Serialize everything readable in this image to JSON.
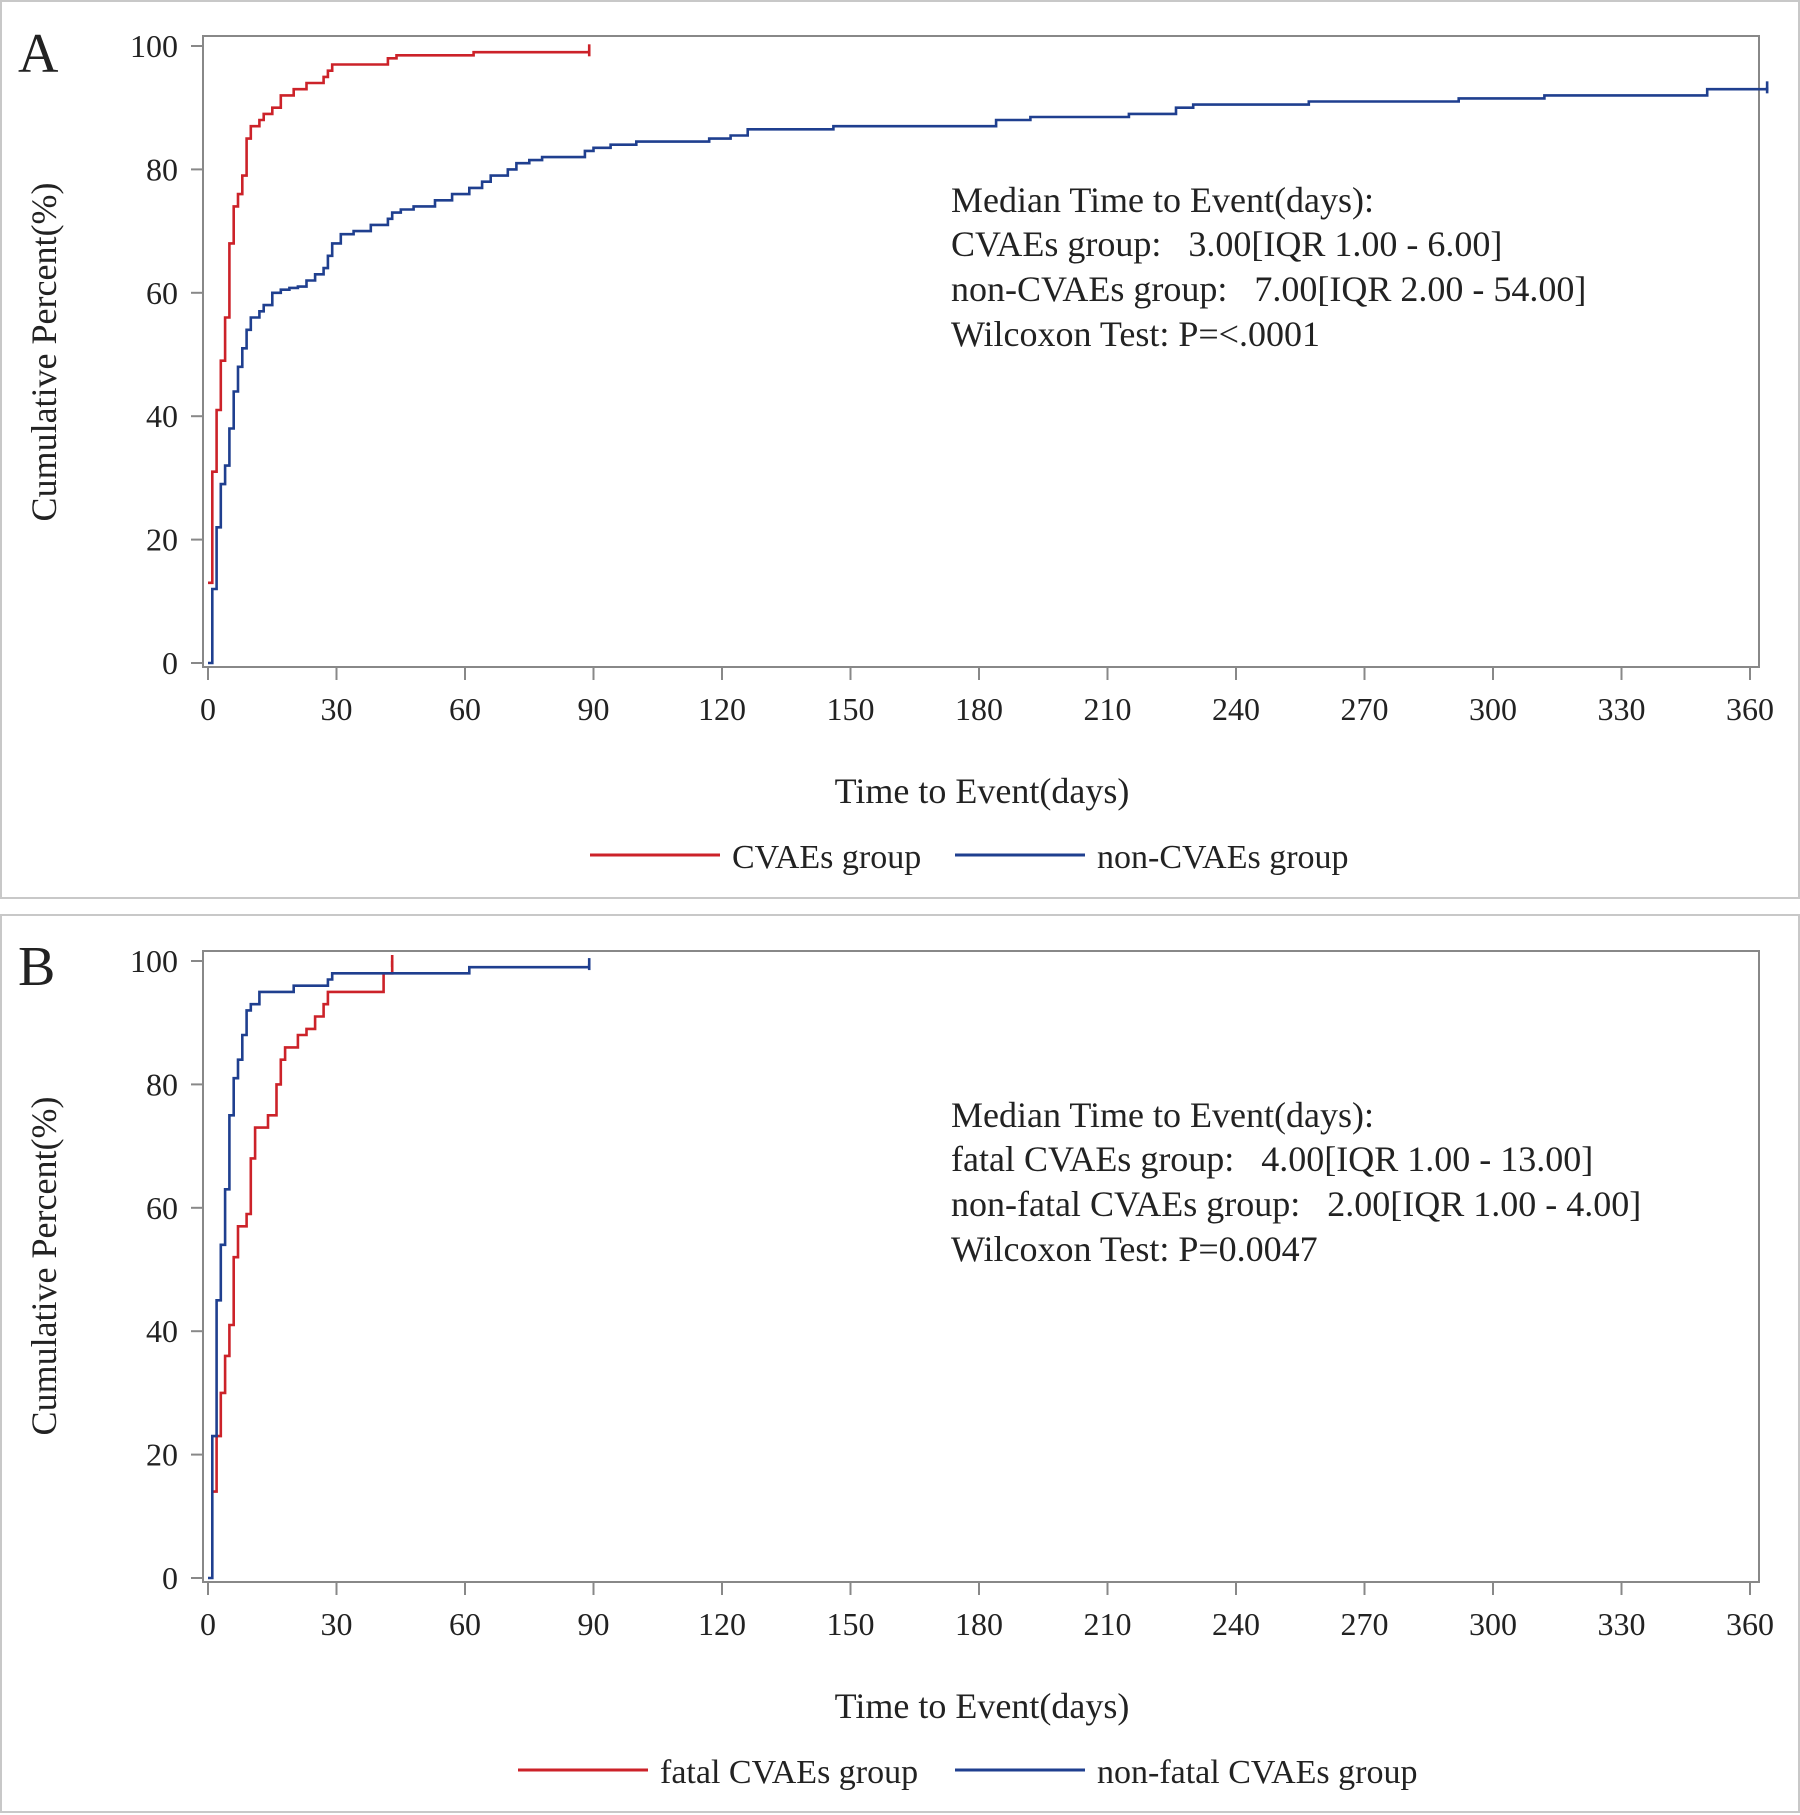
{
  "chart_data": [
    {
      "type": "line",
      "subtype": "step",
      "panel_label": "A",
      "xlabel": "Time to Event(days)",
      "ylabel": "Cumulative Percent(%)",
      "xlim": [
        0,
        360
      ],
      "ylim": [
        0,
        100
      ],
      "x_ticks": [
        0,
        30,
        60,
        90,
        120,
        150,
        180,
        210,
        240,
        270,
        300,
        330,
        360
      ],
      "y_ticks": [
        0,
        20,
        40,
        60,
        80,
        100
      ],
      "grid": false,
      "legend_position": "bottom",
      "annotation": [
        "Median Time to Event(days):",
        "CVAEs group:   3.00[IQR 1.00 - 6.00]",
        "non-CVAEs group:   7.00[IQR 2.00 - 54.00]",
        "Wilcoxon Test: P=<.0001"
      ],
      "series": [
        {
          "name": "CVAEs group",
          "color": "#cc2229",
          "points": [
            [
              0,
              13
            ],
            [
              1,
              20
            ],
            [
              1,
              31
            ],
            [
              2,
              41
            ],
            [
              3,
              49
            ],
            [
              4,
              56
            ],
            [
              5,
              68
            ],
            [
              6,
              74
            ],
            [
              7,
              76
            ],
            [
              8,
              79
            ],
            [
              9,
              85
            ],
            [
              10,
              87
            ],
            [
              12,
              88
            ],
            [
              13,
              89
            ],
            [
              15,
              90
            ],
            [
              17,
              92
            ],
            [
              20,
              93
            ],
            [
              23,
              94
            ],
            [
              25,
              94
            ],
            [
              27,
              95
            ],
            [
              28,
              96
            ],
            [
              29,
              97
            ],
            [
              42,
              98
            ],
            [
              44,
              98.5
            ],
            [
              62,
              99
            ],
            [
              89,
              99.3
            ]
          ]
        },
        {
          "name": "non-CVAEs group",
          "color": "#1f3f8f",
          "points": [
            [
              0,
              0
            ],
            [
              1,
              12
            ],
            [
              2,
              22
            ],
            [
              3,
              29
            ],
            [
              4,
              32
            ],
            [
              5,
              38
            ],
            [
              6,
              44
            ],
            [
              7,
              48
            ],
            [
              8,
              51
            ],
            [
              9,
              54
            ],
            [
              10,
              56
            ],
            [
              12,
              57
            ],
            [
              13,
              58
            ],
            [
              15,
              60
            ],
            [
              17,
              60.5
            ],
            [
              19,
              60.8
            ],
            [
              21,
              61
            ],
            [
              23,
              62
            ],
            [
              25,
              63
            ],
            [
              27,
              64
            ],
            [
              28,
              66
            ],
            [
              29,
              68
            ],
            [
              31,
              69.5
            ],
            [
              34,
              70
            ],
            [
              38,
              71
            ],
            [
              42,
              72
            ],
            [
              43,
              73
            ],
            [
              45,
              73.5
            ],
            [
              48,
              74
            ],
            [
              53,
              75
            ],
            [
              57,
              76
            ],
            [
              61,
              77
            ],
            [
              64,
              78
            ],
            [
              66,
              79
            ],
            [
              70,
              80
            ],
            [
              72,
              81
            ],
            [
              75,
              81.5
            ],
            [
              78,
              82
            ],
            [
              88,
              83
            ],
            [
              90,
              83.5
            ],
            [
              94,
              84
            ],
            [
              100,
              84.5
            ],
            [
              117,
              85
            ],
            [
              122,
              85.5
            ],
            [
              126,
              86.5
            ],
            [
              146,
              87
            ],
            [
              184,
              88
            ],
            [
              192,
              88.5
            ],
            [
              215,
              89
            ],
            [
              226,
              90
            ],
            [
              230,
              90.5
            ],
            [
              257,
              91
            ],
            [
              292,
              91.5
            ],
            [
              312,
              92
            ],
            [
              350,
              93
            ],
            [
              364,
              93.3
            ]
          ]
        }
      ]
    },
    {
      "type": "line",
      "subtype": "step",
      "panel_label": "B",
      "xlabel": "Time to Event(days)",
      "ylabel": "Cumulative Percent(%)",
      "xlim": [
        0,
        360
      ],
      "ylim": [
        0,
        100
      ],
      "x_ticks": [
        0,
        30,
        60,
        90,
        120,
        150,
        180,
        210,
        240,
        270,
        300,
        330,
        360
      ],
      "y_ticks": [
        0,
        20,
        40,
        60,
        80,
        100
      ],
      "grid": false,
      "legend_position": "bottom",
      "annotation": [
        "Median Time to Event(days):",
        "fatal CVAEs group:   4.00[IQR 1.00 - 13.00]",
        "non-fatal CVAEs group:   2.00[IQR 1.00 - 4.00]",
        "Wilcoxon Test: P=0.0047"
      ],
      "series": [
        {
          "name": "fatal CVAEs group",
          "color": "#cc2229",
          "points": [
            [
              1,
              14
            ],
            [
              2,
              23
            ],
            [
              3,
              30
            ],
            [
              4,
              36
            ],
            [
              5,
              41
            ],
            [
              6,
              52
            ],
            [
              7,
              57
            ],
            [
              9,
              59
            ],
            [
              10,
              68
            ],
            [
              11,
              73
            ],
            [
              14,
              75
            ],
            [
              16,
              80
            ],
            [
              17,
              84
            ],
            [
              18,
              86
            ],
            [
              21,
              88
            ],
            [
              23,
              89
            ],
            [
              25,
              91
            ],
            [
              27,
              93
            ],
            [
              28,
              95
            ],
            [
              41,
              98
            ],
            [
              43,
              100
            ]
          ]
        },
        {
          "name": "non-fatal CVAEs group",
          "color": "#1f3f8f",
          "points": [
            [
              0,
              0
            ],
            [
              1,
              23
            ],
            [
              2,
              45
            ],
            [
              3,
              54
            ],
            [
              4,
              63
            ],
            [
              5,
              75
            ],
            [
              6,
              81
            ],
            [
              7,
              84
            ],
            [
              8,
              88
            ],
            [
              9,
              92
            ],
            [
              10,
              93
            ],
            [
              12,
              95
            ],
            [
              20,
              96
            ],
            [
              28,
              97
            ],
            [
              29,
              98
            ],
            [
              61,
              99
            ],
            [
              89,
              99.5
            ]
          ]
        }
      ]
    }
  ]
}
